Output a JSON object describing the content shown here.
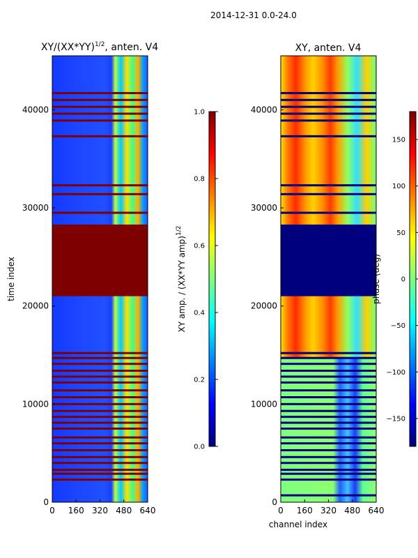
{
  "figure": {
    "suptitle": "2014-12-31 0.0-24.0"
  },
  "colors": {
    "jet": [
      "#00007f",
      "#0000ff",
      "#007fff",
      "#00ffff",
      "#7fff7f",
      "#ffff00",
      "#ff7f00",
      "#ff0000",
      "#7f0000"
    ],
    "flagged_amp": "#7f0000",
    "flagged_phase": "#00007f"
  },
  "chart_data": [
    {
      "type": "heatmap",
      "title_main": "XY/(XX*YY)",
      "title_sup": "1/2",
      "title_rest": ", anten. V4",
      "xlabel": "",
      "ylabel": "time index",
      "xlim": [
        0,
        640
      ],
      "ylim": [
        0,
        45500
      ],
      "xticks": [
        0,
        160,
        320,
        480,
        640
      ],
      "yticks": [
        0,
        10000,
        20000,
        30000,
        40000
      ],
      "colorbar": {
        "label_main": "XY amp. / (XX*YY amp)",
        "label_sup": "1/2",
        "vmin": 0.0,
        "vmax": 1.0,
        "ticks": [
          "0.0",
          "0.2",
          "0.4",
          "0.6",
          "0.8",
          "1.0"
        ]
      },
      "flagged_blocks": [
        [
          21000,
          28300
        ]
      ],
      "flagged_lines": [
        2300,
        2900,
        3300,
        4000,
        4600,
        5300,
        6000,
        6600,
        7500,
        8100,
        8700,
        9300,
        10000,
        10700,
        11400,
        12200,
        12800,
        13400,
        14100,
        14700,
        15200,
        29500,
        31400,
        32300,
        37300,
        38900,
        39600,
        40300,
        41000,
        41700
      ]
    },
    {
      "type": "heatmap",
      "title_main": "XY, anten. V4",
      "xlabel": "channel index",
      "ylabel": "",
      "xlim": [
        0,
        640
      ],
      "ylim": [
        0,
        45500
      ],
      "xticks": [
        0,
        160,
        320,
        480,
        640
      ],
      "yticks": [
        0,
        10000,
        20000,
        30000,
        40000
      ],
      "colorbar": {
        "label": "phase (deg)",
        "vmin": -180,
        "vmax": 180,
        "ticks": [
          "150",
          "100",
          "50",
          "0",
          "−50",
          "−100",
          "−150"
        ]
      },
      "flagged_blocks": [
        [
          21000,
          28300
        ]
      ],
      "flagged_lines": [
        700,
        2300,
        2900,
        3300,
        4000,
        4600,
        5300,
        6000,
        6600,
        7500,
        8100,
        8700,
        9300,
        10000,
        10700,
        11400,
        12200,
        12800,
        13400,
        14100,
        14700,
        15200,
        29500,
        31400,
        32300,
        37300,
        38900,
        39600,
        40300,
        41000,
        41700
      ]
    }
  ]
}
